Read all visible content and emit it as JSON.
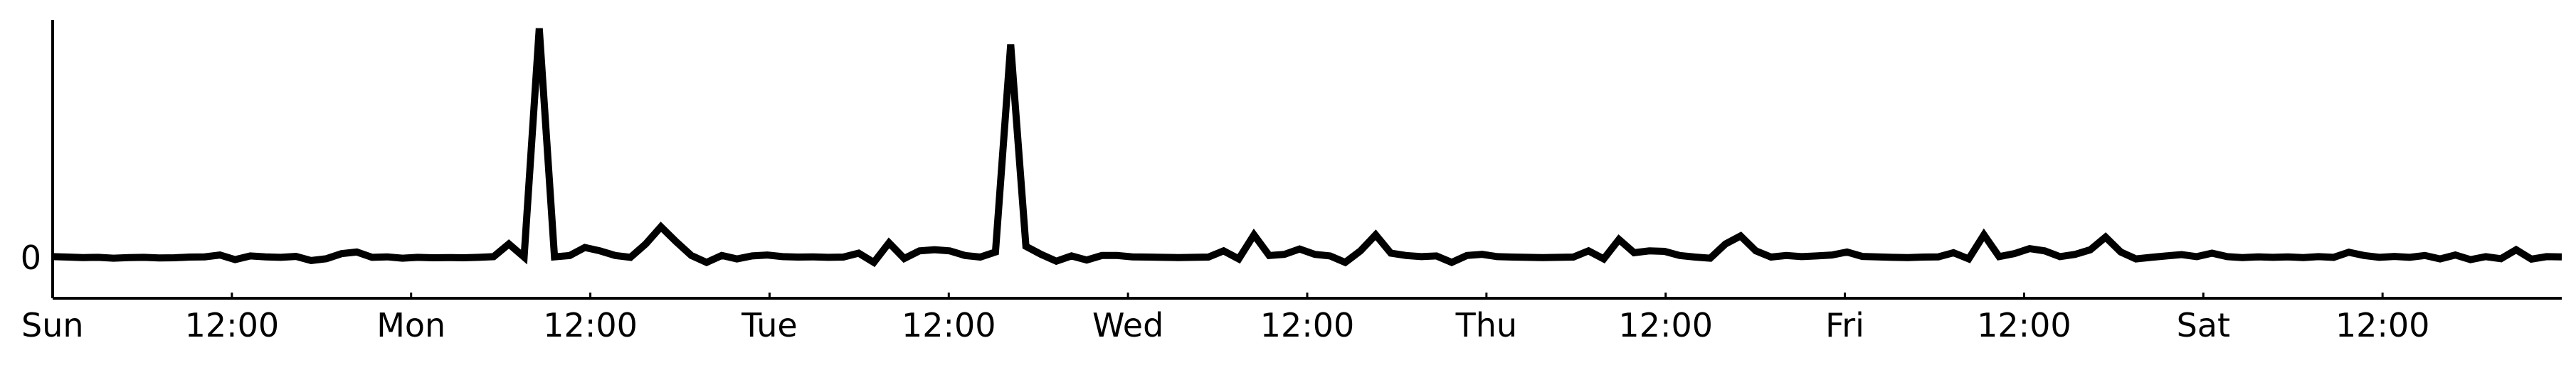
{
  "chart_data": {
    "type": "line",
    "title": "",
    "xlabel": "",
    "ylabel": "",
    "x_ticks": [
      "Sun",
      "12:00",
      "Mon",
      "12:00",
      "Tue",
      "12:00",
      "Wed",
      "12:00",
      "Thu",
      "12:00",
      "Fri",
      "12:00",
      "Sat",
      "12:00"
    ],
    "y_ticks": [
      0
    ],
    "xlim_hours": [
      0,
      168
    ],
    "grid": false,
    "legend": "none",
    "series": [
      {
        "color": "#000000",
        "values": [
          0.005,
          0.003,
          0.001,
          0.002,
          -0.002,
          0.001,
          0.002,
          -0.001,
          0,
          0.003,
          0.004,
          0.012,
          -0.008,
          0.008,
          0.004,
          0.002,
          0.006,
          -0.012,
          -0.004,
          0.018,
          0.025,
          0.002,
          0.004,
          -0.002,
          0.002,
          0,
          0.001,
          0,
          0.002,
          0.005,
          0.06,
          0.003,
          1.0,
          0.004,
          0.01,
          0.045,
          0.03,
          0.01,
          0.002,
          0.06,
          0.135,
          0.07,
          0.01,
          -0.02,
          0.01,
          -0.005,
          0.008,
          0.012,
          0.005,
          0.003,
          0.004,
          0.002,
          0.003,
          0.02,
          -0.02,
          0.065,
          -0.003,
          0.03,
          0.035,
          0.03,
          0.01,
          0.003,
          0.025,
          0.93,
          0.05,
          0.015,
          -0.015,
          0.008,
          -0.01,
          0.01,
          0.01,
          0.004,
          0.003,
          0.002,
          0.001,
          0.002,
          0.003,
          0.03,
          -0.005,
          0.1,
          0.01,
          0.015,
          0.038,
          0.015,
          0.008,
          -0.02,
          0.03,
          0.1,
          0.02,
          0.01,
          0.005,
          0.008,
          -0.02,
          0.01,
          0.015,
          0.005,
          0.003,
          0.002,
          0.001,
          0.002,
          0.003,
          0.03,
          -0.005,
          0.08,
          0.022,
          0.03,
          0.028,
          0.01,
          0.003,
          -0.002,
          0.06,
          0.095,
          0.03,
          0.003,
          0.01,
          0.005,
          0.008,
          0.012,
          0.025,
          0.006,
          0.004,
          0.002,
          0.001,
          0.003,
          0.004,
          0.022,
          -0.005,
          0.1,
          0.005,
          0.018,
          0.04,
          0.03,
          0.005,
          0.015,
          0.035,
          0.09,
          0.025,
          -0.005,
          0.002,
          0.008,
          0.014,
          0.005,
          0.02,
          0.005,
          0.001,
          0.004,
          0.002,
          0.004,
          0.001,
          0.005,
          0.002,
          0.024,
          0.01,
          0.002,
          0.006,
          0.002,
          0.01,
          -0.005,
          0.012,
          -0.008,
          0.005,
          -0.004,
          0.035,
          -0.006,
          0.005,
          0.004
        ]
      }
    ]
  }
}
